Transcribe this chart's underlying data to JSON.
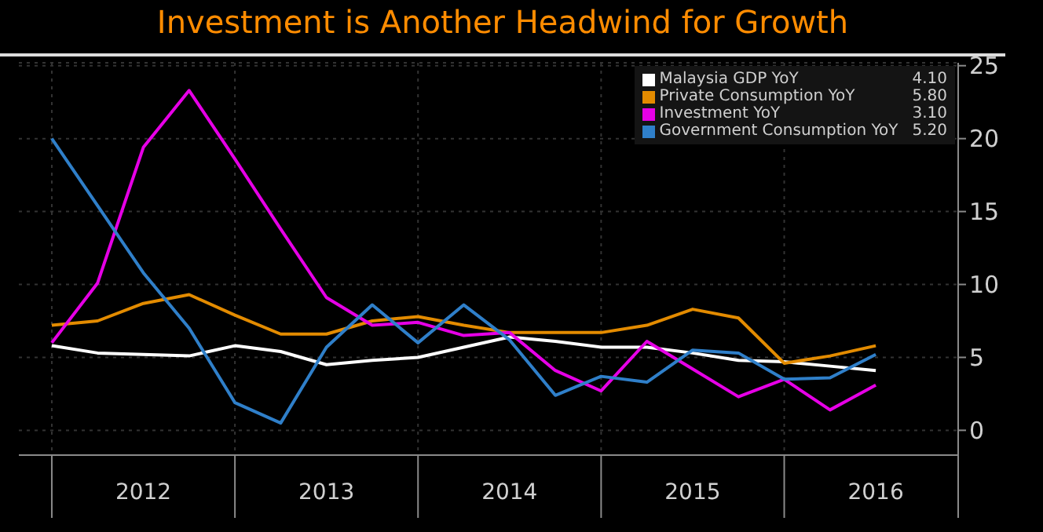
{
  "chart_data": {
    "type": "line",
    "title": "Investment is Another Headwind for Growth",
    "x": [
      2012,
      2012.25,
      2012.5,
      2012.75,
      2013,
      2013.25,
      2013.5,
      2013.75,
      2014,
      2014.25,
      2014.5,
      2014.75,
      2015,
      2015.25,
      2015.5,
      2015.75,
      2016,
      2016.25,
      2016.5
    ],
    "series": [
      {
        "name": "Malaysia GDP YoY",
        "color": "#ffffff",
        "values": [
          5.8,
          5.3,
          5.2,
          5.1,
          5.8,
          5.4,
          4.5,
          4.8,
          5.0,
          5.7,
          6.4,
          6.1,
          5.7,
          5.7,
          5.3,
          4.8,
          4.7,
          4.4,
          4.1
        ]
      },
      {
        "name": "Private Consumption YoY",
        "color": "#e38b00",
        "values": [
          7.2,
          7.5,
          8.7,
          9.3,
          7.9,
          6.6,
          6.6,
          7.5,
          7.8,
          7.2,
          6.7,
          6.7,
          6.7,
          7.2,
          8.3,
          7.7,
          4.6,
          5.1,
          5.8
        ]
      },
      {
        "name": "Investment YoY",
        "color": "#e600e6",
        "values": [
          6.0,
          10.1,
          19.4,
          23.3,
          18.6,
          13.8,
          9.1,
          7.2,
          7.4,
          6.5,
          6.7,
          4.1,
          2.7,
          6.1,
          4.2,
          2.3,
          3.5,
          1.4,
          3.1
        ]
      },
      {
        "name": "Government Consumption YoY",
        "color": "#2f7fc9",
        "values": [
          20.0,
          15.4,
          10.8,
          7.0,
          1.9,
          0.5,
          5.7,
          8.6,
          6.0,
          8.6,
          6.2,
          2.4,
          3.7,
          3.3,
          5.5,
          5.3,
          3.5,
          3.6,
          5.2
        ]
      }
    ],
    "annotations": [
      "4.10",
      "5.80",
      "3.10",
      "5.20"
    ],
    "xlim": [
      2011.82,
      2016.95
    ],
    "xticks": [
      {
        "value": 2012,
        "label": null
      },
      {
        "value": 2012.5,
        "label": "2012"
      },
      {
        "value": 2013,
        "label": null
      },
      {
        "value": 2013.5,
        "label": "2013"
      },
      {
        "value": 2014,
        "label": null
      },
      {
        "value": 2014.5,
        "label": "2014"
      },
      {
        "value": 2015,
        "label": null
      },
      {
        "value": 2015.5,
        "label": "2015"
      },
      {
        "value": 2016,
        "label": null
      },
      {
        "value": 2016.5,
        "label": "2016"
      },
      {
        "value": 2016.95,
        "label": null
      }
    ],
    "ylim": [
      -1.7,
      25.2
    ],
    "yticks": [
      0,
      5,
      10,
      15,
      20,
      25
    ],
    "grid": true,
    "legend": "top right",
    "marker": "none",
    "line_style": "solid"
  }
}
